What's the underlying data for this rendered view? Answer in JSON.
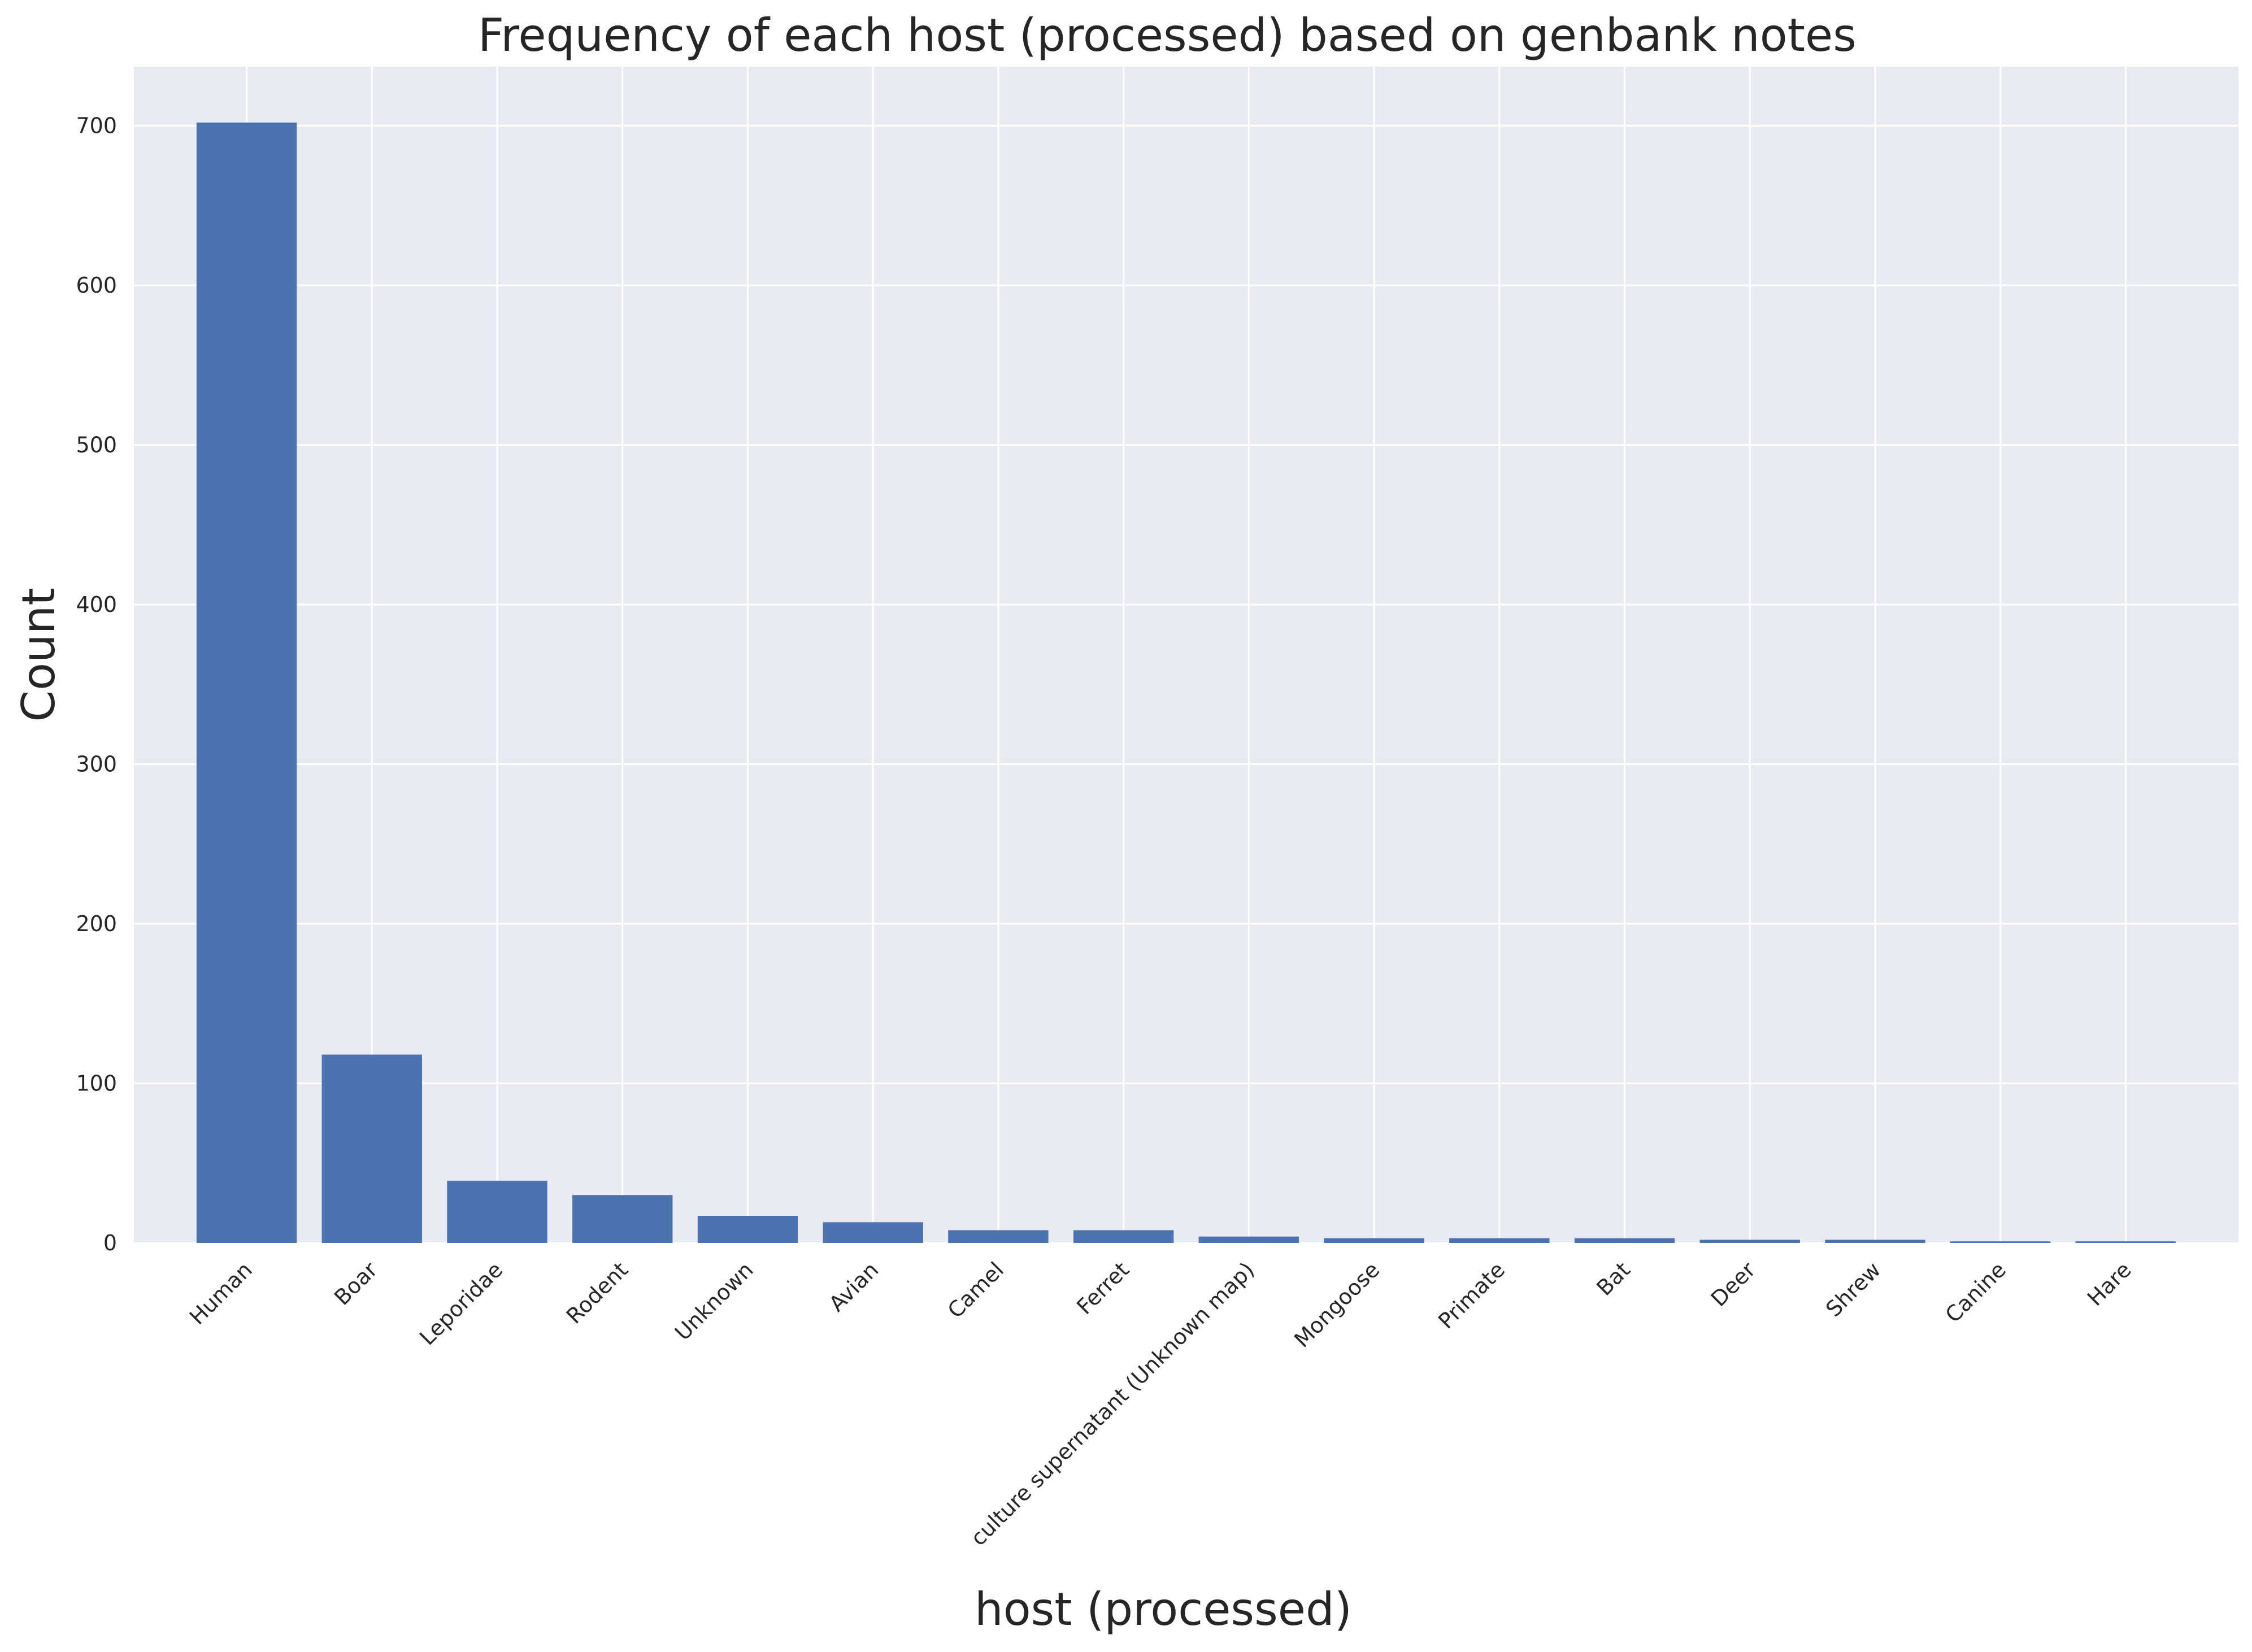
{
  "chart_data": {
    "type": "bar",
    "title": "Frequency of each host (processed) based on genbank notes",
    "xlabel": "host (processed)",
    "ylabel": "Count",
    "categories": [
      "Human",
      "Boar",
      "Leporidae",
      "Rodent",
      "Unknown",
      "Avian",
      "Camel",
      "Ferret",
      "culture supernatant (Unknown map)",
      "Mongoose",
      "Primate",
      "Bat",
      "Deer",
      "Shrew",
      "Canine",
      "Hare"
    ],
    "values": [
      702,
      118,
      39,
      30,
      17,
      13,
      8,
      8,
      4,
      3,
      3,
      3,
      2,
      2,
      1,
      1
    ],
    "ylim": [
      0,
      737
    ],
    "yticks": [
      0,
      100,
      200,
      300,
      400,
      500,
      600,
      700
    ],
    "grid": true,
    "bar_color": "#4c72b0",
    "background_color": "#eaeaf2",
    "grid_color": "#ffffff"
  }
}
